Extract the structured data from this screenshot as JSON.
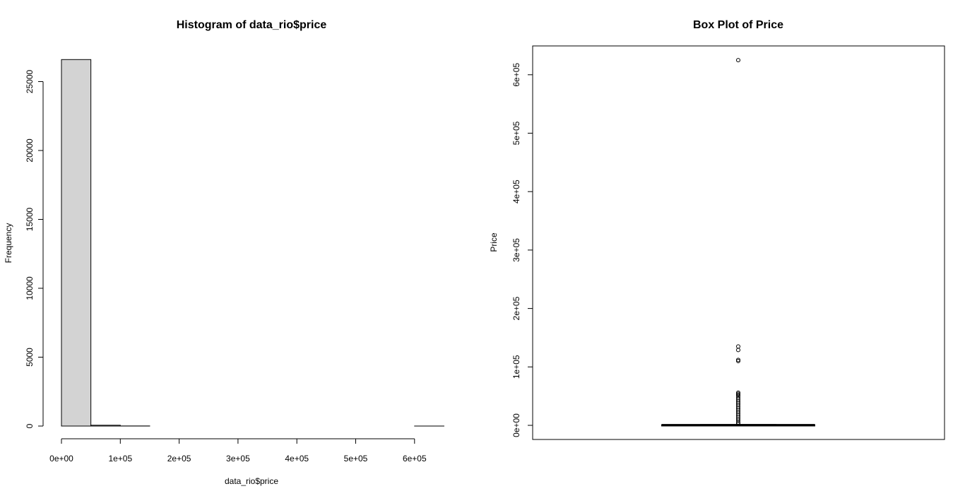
{
  "chart_data": [
    {
      "type": "bar",
      "subtype": "histogram",
      "title": "Histogram of data_rio$price",
      "xlabel": "data_rio$price",
      "ylabel": "Frequency",
      "xlim": [
        0,
        650000
      ],
      "ylim": [
        0,
        27000
      ],
      "x_ticks": [
        0,
        100000,
        200000,
        300000,
        400000,
        500000,
        600000
      ],
      "x_tick_labels": [
        "0e+00",
        "1e+05",
        "2e+05",
        "3e+05",
        "4e+05",
        "5e+05",
        "6e+05"
      ],
      "y_ticks": [
        0,
        5000,
        10000,
        15000,
        20000,
        25000
      ],
      "y_tick_labels": [
        "0",
        "5000",
        "10000",
        "15000",
        "20000",
        "25000"
      ],
      "bins": [
        {
          "from": 0,
          "to": 50000,
          "count": 26600
        },
        {
          "from": 50000,
          "to": 100000,
          "count": 60
        },
        {
          "from": 100000,
          "to": 150000,
          "count": 8
        },
        {
          "from": 150000,
          "to": 200000,
          "count": 0
        },
        {
          "from": 200000,
          "to": 250000,
          "count": 0
        },
        {
          "from": 250000,
          "to": 300000,
          "count": 0
        },
        {
          "from": 300000,
          "to": 350000,
          "count": 0
        },
        {
          "from": 350000,
          "to": 400000,
          "count": 0
        },
        {
          "from": 400000,
          "to": 450000,
          "count": 0
        },
        {
          "from": 450000,
          "to": 500000,
          "count": 0
        },
        {
          "from": 500000,
          "to": 550000,
          "count": 0
        },
        {
          "from": 550000,
          "to": 600000,
          "count": 0
        },
        {
          "from": 600000,
          "to": 650000,
          "count": 1
        }
      ],
      "bar_fill": "#d3d3d3"
    },
    {
      "type": "box",
      "title": "Box Plot of Price",
      "xlabel": "",
      "ylabel": "Price",
      "ylim": [
        0,
        650000
      ],
      "y_ticks": [
        0,
        100000,
        200000,
        300000,
        400000,
        500000,
        600000
      ],
      "y_tick_labels": [
        "0e+00",
        "1e+05",
        "2e+05",
        "3e+05",
        "4e+05",
        "5e+05",
        "6e+05"
      ],
      "box": {
        "q1": 200,
        "median": 380,
        "q3": 700,
        "whisker_low": 0,
        "whisker_high": 1500
      },
      "outliers": [
        625000,
        135000,
        129000,
        112000,
        110000,
        56000,
        54000,
        52000,
        50000,
        47000,
        44000,
        41000,
        38000,
        35000,
        32000,
        29000,
        26000,
        23000,
        20000,
        17000,
        14000,
        11000,
        8000,
        5000,
        3000
      ],
      "legend": "none",
      "grid": false
    }
  ]
}
